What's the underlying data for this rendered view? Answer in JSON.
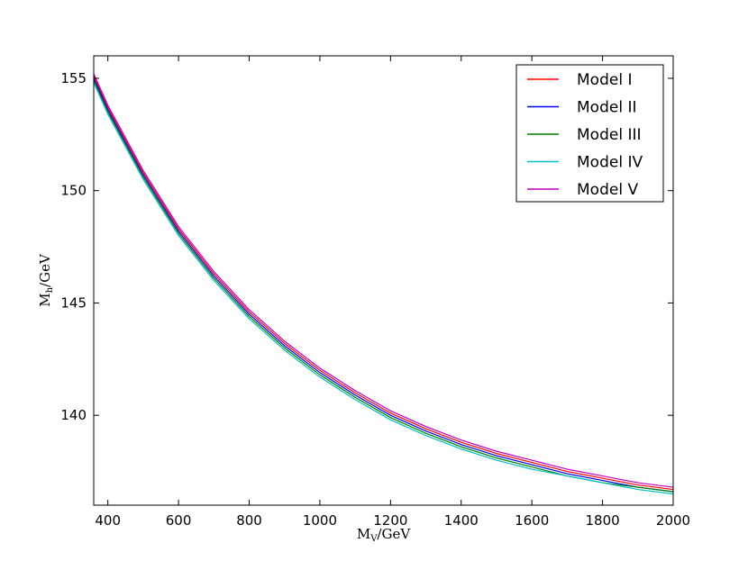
{
  "chart_data": {
    "type": "line",
    "xlabel": "M_V/GeV",
    "ylabel": "M_h/GeV",
    "xlim": [
      360,
      2000
    ],
    "ylim": [
      136,
      156
    ],
    "x_ticks": [
      400,
      600,
      800,
      1000,
      1200,
      1400,
      1600,
      1800,
      2000
    ],
    "y_ticks": [
      140,
      145,
      150,
      155
    ],
    "grid": false,
    "legend_position": "top-right",
    "x": [
      360,
      400,
      500,
      600,
      700,
      800,
      900,
      1000,
      1100,
      1200,
      1300,
      1400,
      1500,
      1600,
      1700,
      1800,
      1900,
      2000
    ],
    "series": [
      {
        "name": "Model I",
        "color": "#ff0000",
        "values": [
          155.1,
          153.7,
          150.8,
          148.3,
          146.3,
          144.6,
          143.2,
          142.0,
          141.0,
          140.1,
          139.4,
          138.8,
          138.3,
          137.9,
          137.5,
          137.2,
          136.9,
          136.7
        ]
      },
      {
        "name": "Model II",
        "color": "#0000ff",
        "values": [
          155.0,
          153.6,
          150.7,
          148.2,
          146.2,
          144.5,
          143.1,
          141.9,
          140.9,
          140.0,
          139.3,
          138.7,
          138.2,
          137.8,
          137.4,
          137.1,
          136.8,
          136.6
        ]
      },
      {
        "name": "Model III",
        "color": "#008000",
        "values": [
          154.9,
          153.5,
          150.6,
          148.1,
          146.1,
          144.4,
          143.0,
          141.8,
          140.8,
          139.9,
          139.2,
          138.6,
          138.1,
          137.7,
          137.3,
          137.0,
          136.8,
          136.6
        ]
      },
      {
        "name": "Model IV",
        "color": "#00bfbf",
        "values": [
          154.8,
          153.4,
          150.5,
          148.0,
          146.0,
          144.3,
          142.9,
          141.7,
          140.7,
          139.8,
          139.1,
          138.5,
          138.0,
          137.6,
          137.3,
          137.0,
          136.7,
          136.5
        ]
      },
      {
        "name": "Model V",
        "color": "#bf00bf",
        "values": [
          155.2,
          153.8,
          150.9,
          148.4,
          146.4,
          144.7,
          143.3,
          142.1,
          141.1,
          140.2,
          139.5,
          138.9,
          138.4,
          138.0,
          137.6,
          137.3,
          137.0,
          136.8
        ]
      }
    ]
  }
}
